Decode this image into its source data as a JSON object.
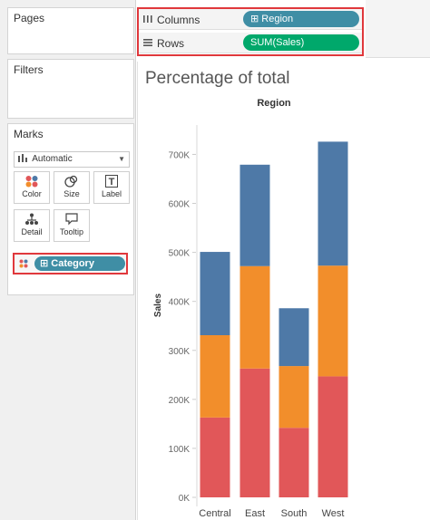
{
  "left_panel": {
    "pages_title": "Pages",
    "filters_title": "Filters",
    "marks_title": "Marks",
    "mark_type": "Automatic",
    "buttons": {
      "color": "Color",
      "size": "Size",
      "label": "Label",
      "detail": "Detail",
      "tooltip": "Tooltip"
    },
    "color_field": "Category"
  },
  "shelves": {
    "columns_label": "Columns",
    "columns_pill": "Region",
    "rows_label": "Rows",
    "rows_pill": "SUM(Sales)"
  },
  "colors": {
    "pill_blue": "#3f8ea5",
    "pill_green": "#00a86b",
    "highlight_red": "#e0383c",
    "series_blue": "#4e79a7",
    "series_orange": "#f28e2b",
    "series_red": "#e15759"
  },
  "chart_data": {
    "type": "bar",
    "stacked": true,
    "title": "Percentage of total",
    "header": "Region",
    "ylabel": "Sales",
    "categories": [
      "Central",
      "East",
      "South",
      "West"
    ],
    "ylim": [
      0,
      760000
    ],
    "yticks": [
      "0K",
      "100K",
      "200K",
      "300K",
      "400K",
      "500K",
      "600K",
      "700K"
    ],
    "ytick_values": [
      0,
      100000,
      200000,
      300000,
      400000,
      500000,
      600000,
      700000
    ],
    "series": [
      {
        "color": "#e15759",
        "values": [
          163000,
          263000,
          142000,
          247000
        ]
      },
      {
        "color": "#f28e2b",
        "values": [
          168000,
          209000,
          126000,
          226000
        ]
      },
      {
        "color": "#4e79a7",
        "values": [
          170000,
          207000,
          118000,
          253000
        ]
      }
    ],
    "grid": false
  }
}
